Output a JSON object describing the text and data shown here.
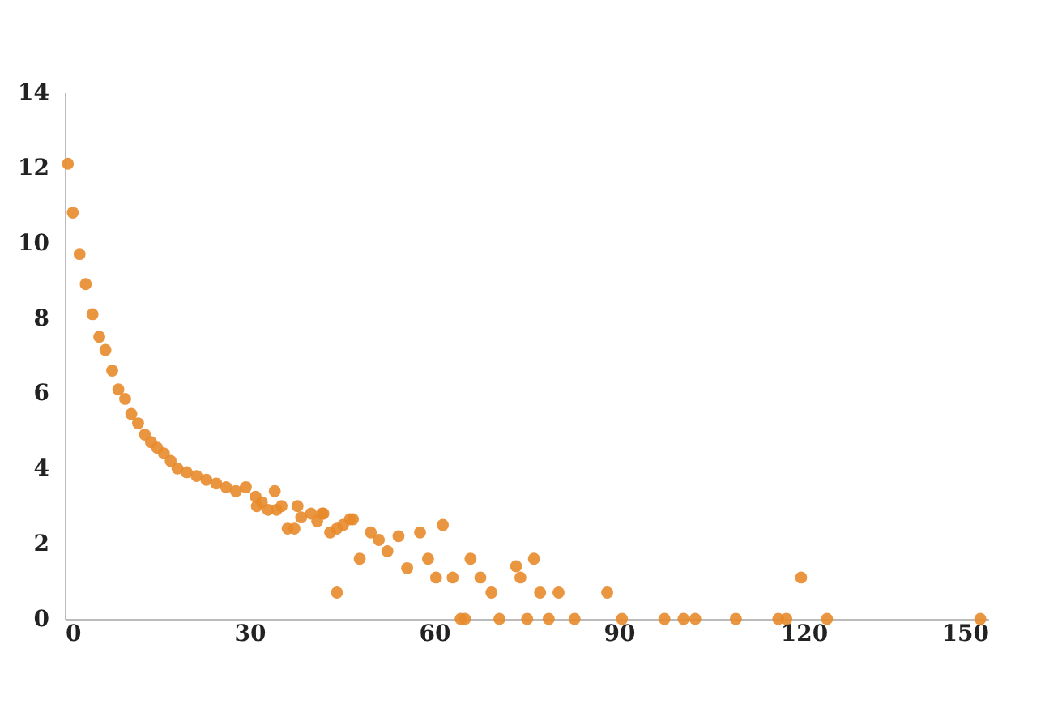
{
  "chart_data": {
    "type": "scatter",
    "x": [
      0.5,
      1.3,
      2.4,
      3.4,
      4.5,
      5.6,
      6.6,
      7.7,
      8.7,
      9.8,
      10.8,
      11.9,
      13,
      14,
      15,
      16.1,
      17.2,
      18.3,
      19.8,
      21.4,
      23,
      24.6,
      26.2,
      27.8,
      29.4,
      31,
      32,
      33,
      34.1,
      35.2,
      36.2,
      37.3,
      38.4,
      40,
      41,
      42,
      43.1,
      44.2,
      45.2,
      46.3,
      44.2,
      31.2,
      34.4,
      37.8,
      41.8,
      46.8,
      47.9,
      49.7,
      51,
      52.4,
      54.2,
      55.6,
      57.7,
      59,
      60.3,
      61.4,
      63,
      64.3,
      65,
      65.9,
      67.5,
      69.3,
      70.6,
      73.3,
      74,
      75.1,
      76.2,
      77.2,
      78.6,
      80.2,
      82.8,
      88.1,
      90.5,
      97.4,
      100.5,
      102.4,
      109,
      115.9,
      117.2,
      119.6,
      123.8,
      148.7
    ],
    "series": [
      {
        "color": "#e8892b",
        "values": [
          12.1,
          10.8,
          9.7,
          8.9,
          8.1,
          7.5,
          7.15,
          6.6,
          6.1,
          5.85,
          5.45,
          5.2,
          4.9,
          4.7,
          4.55,
          4.4,
          4.2,
          4.0,
          3.9,
          3.8,
          3.7,
          3.6,
          3.5,
          3.4,
          3.5,
          3.25,
          3.1,
          2.9,
          3.4,
          3.0,
          2.4,
          2.4,
          2.7,
          2.8,
          2.6,
          2.8,
          2.3,
          2.4,
          2.5,
          2.65,
          0.7,
          3.0,
          2.9,
          3.0,
          2.8,
          2.65,
          1.6,
          2.3,
          2.1,
          1.8,
          2.2,
          1.35,
          2.3,
          1.6,
          1.1,
          2.5,
          1.1,
          0,
          0,
          1.6,
          1.1,
          0.7,
          0,
          1.4,
          1.1,
          0,
          1.6,
          0.7,
          0,
          0.7,
          0,
          0.7,
          0,
          0,
          0,
          0,
          0,
          0,
          0,
          1.1,
          0,
          0
        ]
      }
    ],
    "xlim": [
      0,
      150
    ],
    "xticks": [
      0,
      30,
      60,
      90,
      120,
      150
    ],
    "ylim": [
      0,
      14
    ],
    "yticks": [
      0,
      2,
      4,
      6,
      8,
      10,
      12,
      14
    ],
    "marker": "circle",
    "grid": false,
    "legend": false
  }
}
